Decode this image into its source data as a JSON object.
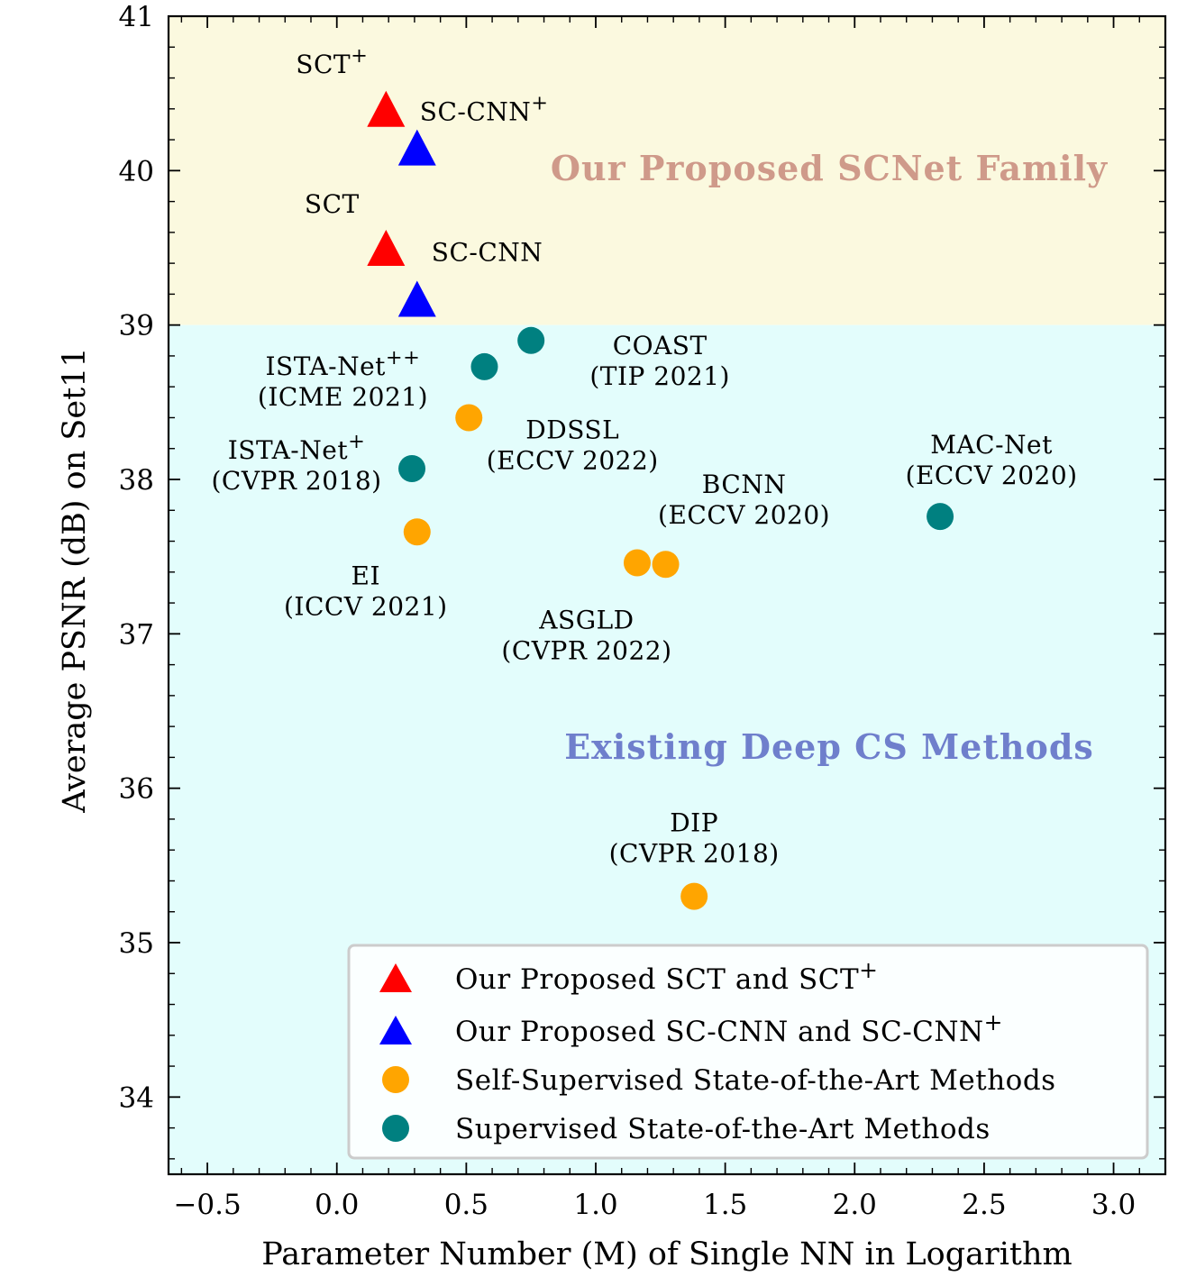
{
  "chart_data": {
    "type": "scatter",
    "xlabel": "Parameter Number (M) of Single NN in Logarithm",
    "ylabel": "Average PSNR (dB) on Set11",
    "xlim": [
      -0.65,
      3.2
    ],
    "ylim": [
      33.5,
      41
    ],
    "xticks": [
      -0.5,
      0.0,
      0.5,
      1.0,
      1.5,
      2.0,
      2.5,
      3.0
    ],
    "xtick_labels": [
      "−0.5",
      "0.0",
      "0.5",
      "1.0",
      "1.5",
      "2.0",
      "2.5",
      "3.0"
    ],
    "yticks": [
      34,
      35,
      36,
      37,
      38,
      39,
      40,
      41
    ],
    "ytick_labels": [
      "34",
      "35",
      "36",
      "37",
      "38",
      "39",
      "40",
      "41"
    ],
    "grid": false,
    "regions": [
      {
        "label": "Our Proposed SCNet Family",
        "y_range": [
          39,
          41
        ],
        "fill": "#fbf9df",
        "text_color": "#cf9a8a"
      },
      {
        "label": "Existing Deep CS Methods",
        "y_range": [
          33.5,
          39
        ],
        "fill": "#e3fdfc",
        "text_color": "#6f7fcc"
      }
    ],
    "series": [
      {
        "name": "Our Proposed SCT and SCT",
        "name_sup": "+",
        "marker": "triangle",
        "color": "#ff0000",
        "points": [
          {
            "label": "SCT",
            "sup": "+",
            "x": 0.19,
            "y": 40.4
          },
          {
            "label": "SCT",
            "sup": "",
            "x": 0.19,
            "y": 39.5
          }
        ]
      },
      {
        "name": "Our Proposed SC-CNN and SC-CNN",
        "name_sup": "+",
        "marker": "triangle",
        "color": "#0000ff",
        "points": [
          {
            "label": "SC-CNN",
            "sup": "+",
            "x": 0.31,
            "y": 40.15
          },
          {
            "label": "SC-CNN",
            "sup": "",
            "x": 0.31,
            "y": 39.17
          }
        ]
      },
      {
        "name": "Self-Supervised State-of-the-Art Methods",
        "name_sup": "",
        "marker": "circle",
        "color": "#ffa500",
        "points": [
          {
            "label": "DDSSL",
            "sup": "",
            "venue": "(ECCV 2022)",
            "x": 0.51,
            "y": 38.4
          },
          {
            "label": "EI",
            "sup": "",
            "venue": "(ICCV 2021)",
            "x": 0.31,
            "y": 37.66
          },
          {
            "label": "ASGLD",
            "sup": "",
            "venue": "(CVPR 2022)",
            "x": 1.16,
            "y": 37.46
          },
          {
            "label": "BCNN",
            "sup": "",
            "venue": "(ECCV 2020)",
            "x": 1.27,
            "y": 37.45
          },
          {
            "label": "DIP",
            "sup": "",
            "venue": "(CVPR 2018)",
            "x": 1.38,
            "y": 35.3
          }
        ]
      },
      {
        "name": "Supervised State-of-the-Art Methods",
        "name_sup": "",
        "marker": "circle",
        "color": "#008080",
        "points": [
          {
            "label": "COAST",
            "sup": "",
            "venue": "(TIP 2021)",
            "x": 0.75,
            "y": 38.9
          },
          {
            "label": "ISTA-Net",
            "sup": "++",
            "venue": "(ICME 2021)",
            "x": 0.57,
            "y": 38.73
          },
          {
            "label": "ISTA-Net",
            "sup": "+",
            "venue": "(CVPR 2018)",
            "x": 0.29,
            "y": 38.07
          },
          {
            "label": "MAC-Net",
            "sup": "",
            "venue": "(ECCV 2020)",
            "x": 2.33,
            "y": 37.76
          }
        ]
      }
    ],
    "legend_placement": "lower-right"
  }
}
